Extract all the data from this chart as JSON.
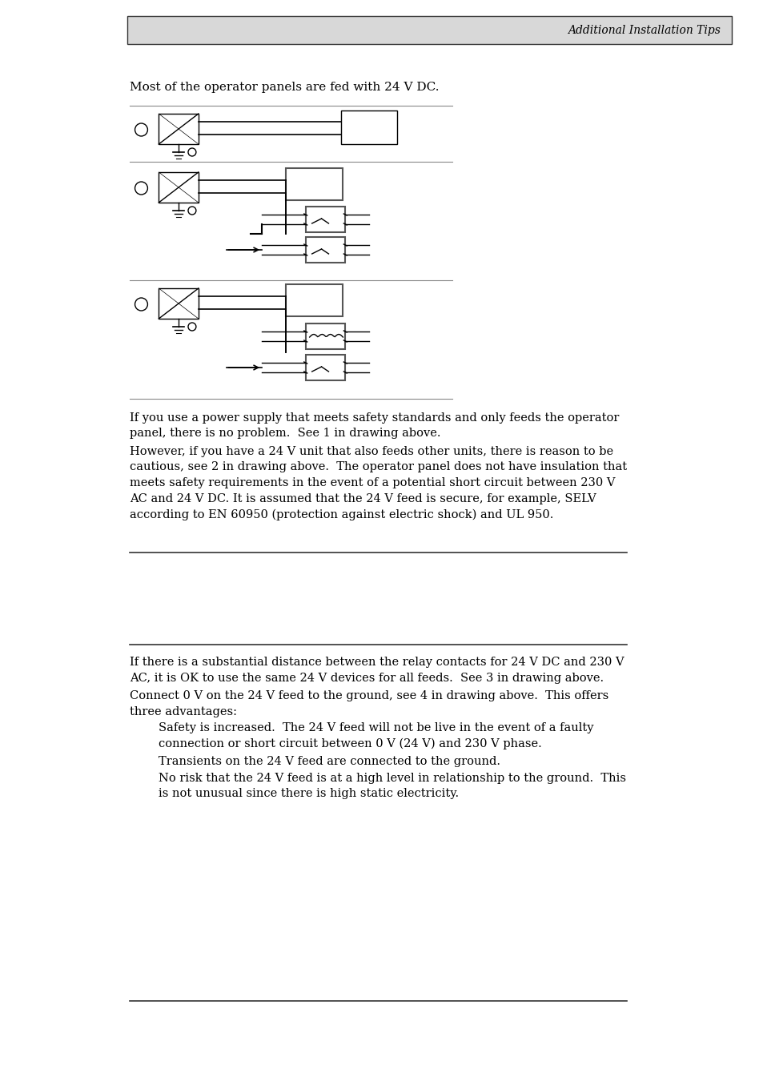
{
  "header_text": "Additional Installation Tips",
  "header_bg": "#d8d8d8",
  "page_bg": "#ffffff",
  "intro_text": "Most of the operator panels are fed with 24 V DC.",
  "body_text1": "If you use a power supply that meets safety standards and only feeds the operator\npanel, there is no problem.  See 1 in drawing above.",
  "body_text2": "However, if you have a 24 V unit that also feeds other units, there is reason to be\ncautious, see 2 in drawing above.  The operator panel does not have insulation that\nmeets safety requirements in the event of a potential short circuit between 230 V\nAC and 24 V DC. It is assumed that the 24 V feed is secure, for example, SELV\naccording to EN 60950 (protection against electric shock) and UL 950.",
  "body_text3": "If there is a substantial distance between the relay contacts for 24 V DC and 230 V\nAC, it is OK to use the same 24 V devices for all feeds.  See 3 in drawing above.",
  "body_text4": "Connect 0 V on the 24 V feed to the ground, see 4 in drawing above.  This offers\nthree advantages:",
  "bullet1": "Safety is increased.  The 24 V feed will not be live in the event of a faulty\nconnection or short circuit between 0 V (24 V) and 230 V phase.",
  "bullet2": "Transients on the 24 V feed are connected to the ground.",
  "bullet3": "No risk that the 24 V feed is at a high level in relationship to the ground.  This\nis not unusual since there is high static electricity.",
  "text_color": "#000000",
  "diagram_line_color": "#000000",
  "box_edge_color": "#555555"
}
